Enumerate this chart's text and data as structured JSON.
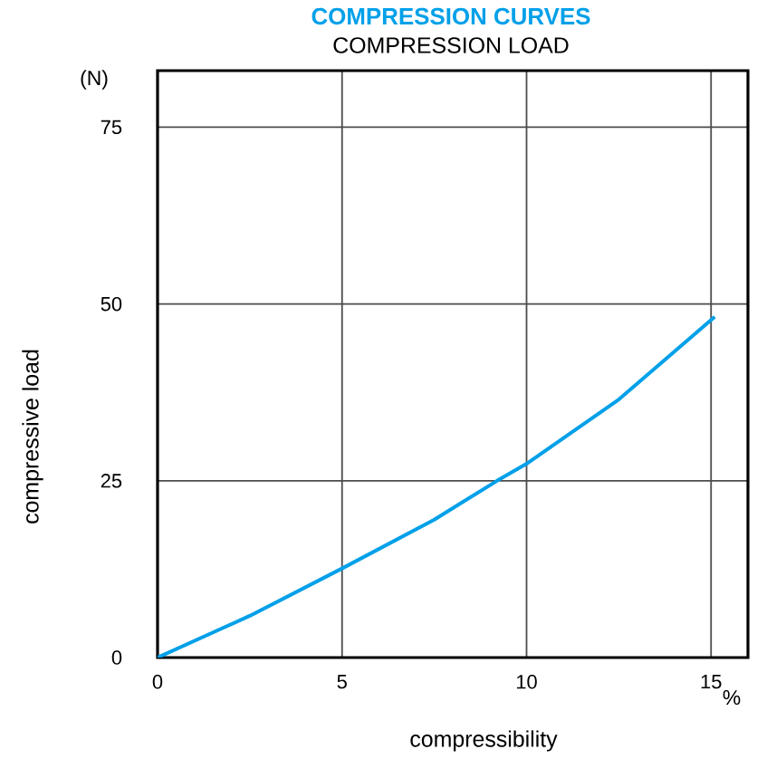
{
  "chart_data": {
    "type": "line",
    "title": "COMPRESSION CURVES",
    "subtitle": "COMPRESSION LOAD",
    "xlabel": "compressibility",
    "ylabel": "compressive load",
    "annotations": [
      "(N)",
      "%"
    ],
    "xlim": [
      0,
      16
    ],
    "ylim": [
      0,
      83
    ],
    "xticks": [
      0,
      5,
      10,
      15
    ],
    "yticks": [
      0,
      25,
      50,
      75
    ],
    "grid": true,
    "marker": "none",
    "line_style": "solid",
    "series": [
      {
        "color": "#00a0e9",
        "x": [
          0,
          2.5,
          5,
          7.5,
          9.2,
          10,
          12.5,
          15.1
        ],
        "values": [
          0,
          5.9,
          12.6,
          19.5,
          25,
          27.4,
          36.5,
          48.2
        ]
      }
    ]
  }
}
